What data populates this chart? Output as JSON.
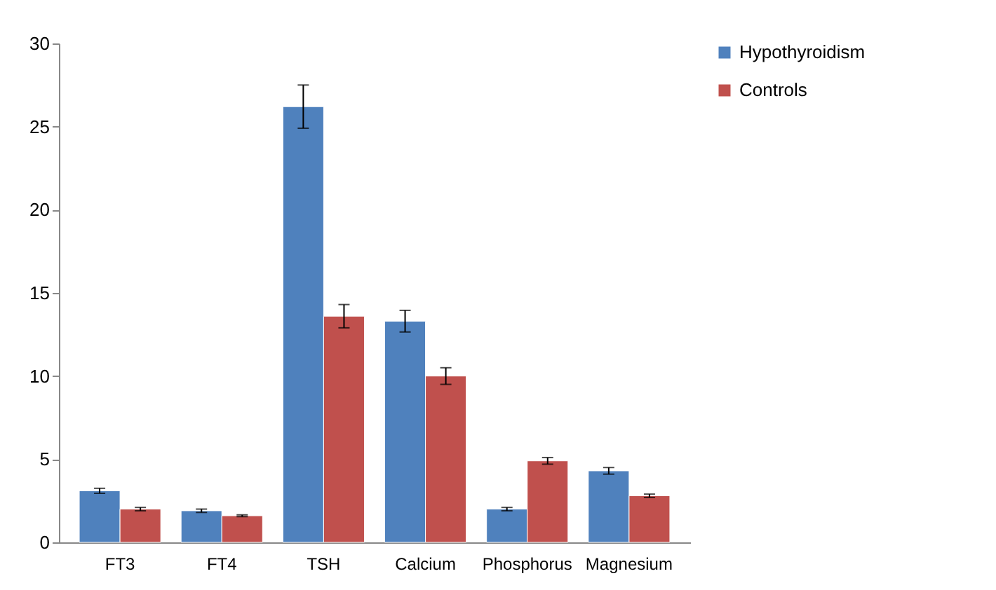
{
  "chart_data": {
    "type": "bar",
    "categories": [
      "FT3",
      "FT4",
      "TSH",
      "Calcium",
      "Phosphorus",
      "Magnesium"
    ],
    "series": [
      {
        "name": "Hypothyroidism",
        "color": "#4f81bd",
        "values": [
          3.1,
          1.9,
          26.2,
          13.3,
          2.0,
          4.3
        ],
        "errors": [
          0.15,
          0.1,
          1.3,
          0.65,
          0.1,
          0.2
        ]
      },
      {
        "name": "Controls",
        "color": "#c0504d",
        "values": [
          2.0,
          1.6,
          13.6,
          10.0,
          4.9,
          2.8
        ],
        "errors": [
          0.1,
          0.05,
          0.7,
          0.5,
          0.2,
          0.1
        ]
      }
    ],
    "ylim": [
      0,
      30
    ],
    "yticks": [
      0,
      5,
      10,
      15,
      20,
      25,
      30
    ],
    "grid": false,
    "legend": "right"
  }
}
